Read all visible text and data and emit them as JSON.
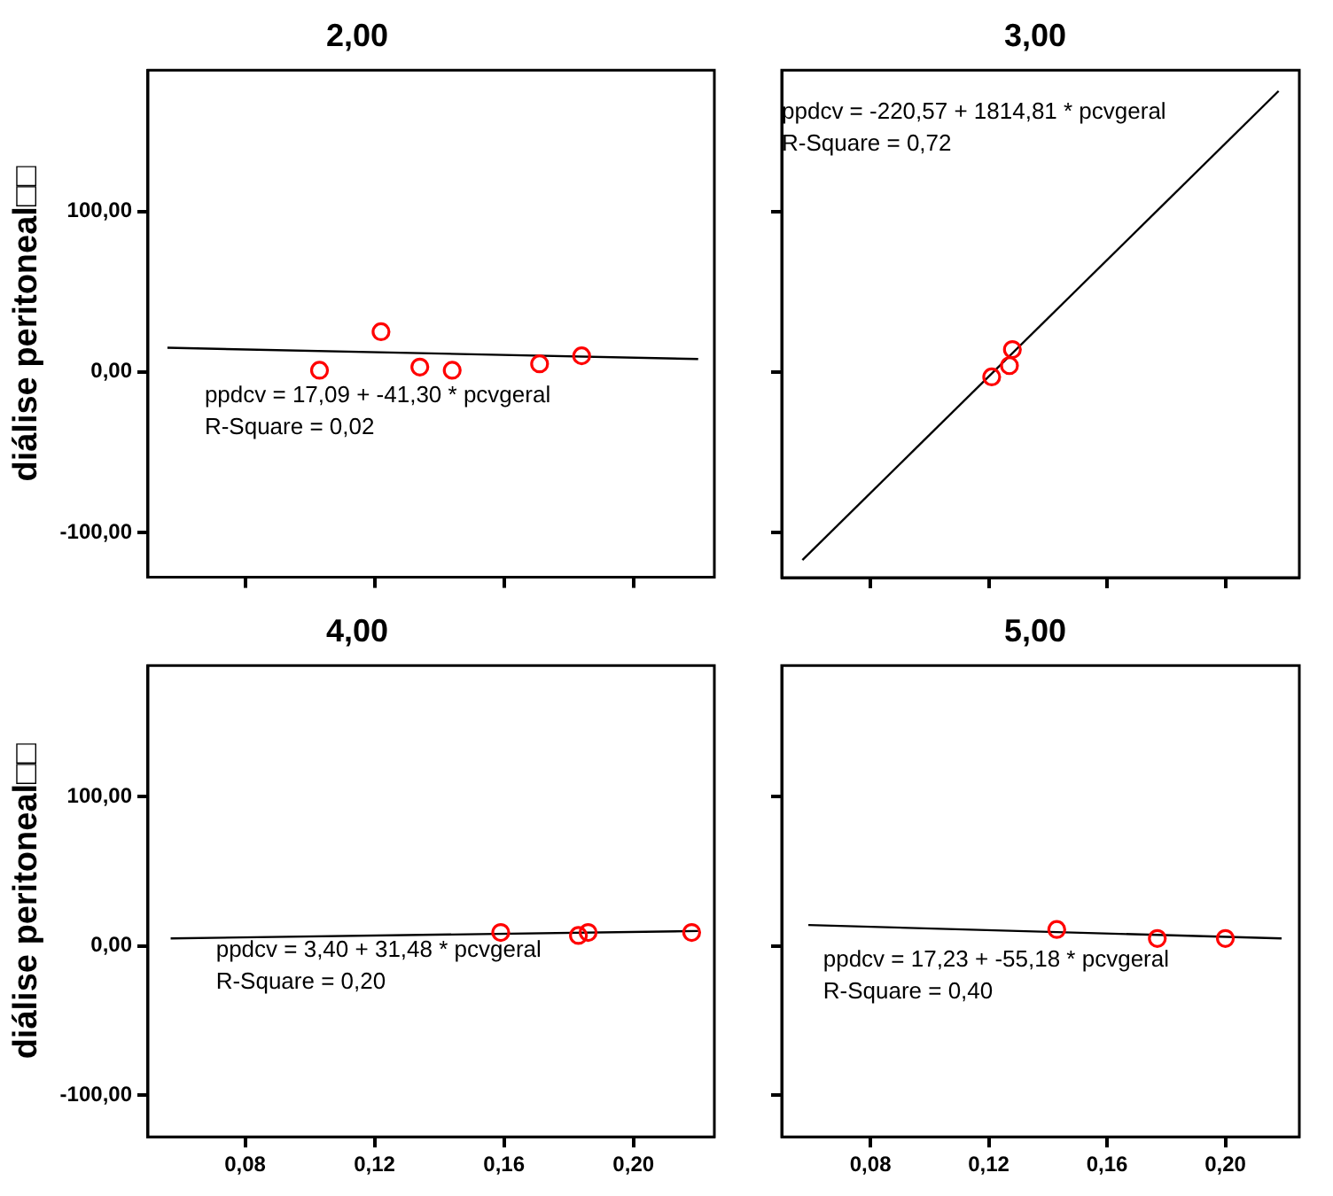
{
  "chart_data": [
    {
      "type": "scatter",
      "title": "2,00",
      "ylabel": "diálise peritoneal□□",
      "marker": "circle",
      "tick_labels": "y",
      "xlim": [
        0.05,
        0.225
      ],
      "ylim": [
        -128,
        188
      ],
      "xticks": [
        {
          "value": 0.08,
          "label": null
        },
        {
          "value": 0.12,
          "label": null
        },
        {
          "value": 0.16,
          "label": null
        },
        {
          "value": 0.2,
          "label": null
        }
      ],
      "yticks": [
        {
          "value": -100,
          "label": "-100,00"
        },
        {
          "value": 0,
          "label": "0,00"
        },
        {
          "value": 100,
          "label": "100,00"
        }
      ],
      "annotations": [
        "ppdcv = 17,09 + -41,30 * pcvgeral",
        "R-Square = 0,02"
      ],
      "series": [
        {
          "type": "scatter",
          "color": "#ff0000",
          "x": [
            0.103,
            0.122,
            0.134,
            0.144,
            0.171,
            0.184
          ],
          "values": [
            1,
            25,
            3,
            1,
            5,
            10
          ]
        },
        {
          "type": "line",
          "color": "#000000",
          "marker": "none",
          "x": [
            0.056,
            0.22
          ],
          "values": [
            15,
            8
          ]
        }
      ]
    },
    {
      "type": "scatter",
      "title": "3,00",
      "marker": "circle",
      "tick_labels": false,
      "xlim": [
        0.05,
        0.225
      ],
      "ylim": [
        -128,
        188
      ],
      "xticks": [
        {
          "value": 0.08,
          "label": null
        },
        {
          "value": 0.12,
          "label": null
        },
        {
          "value": 0.16,
          "label": null
        },
        {
          "value": 0.2,
          "label": null
        }
      ],
      "yticks": [
        {
          "value": -100,
          "label": null
        },
        {
          "value": 0,
          "label": null
        },
        {
          "value": 100,
          "label": null
        }
      ],
      "annotations": [
        "ppdcv = -220,57 + 1814,81 * pcvgeral",
        "R-Square = 0,72"
      ],
      "series": [
        {
          "type": "scatter",
          "color": "#ff0000",
          "x": [
            0.121,
            0.127,
            0.128
          ],
          "values": [
            -3,
            4,
            14
          ]
        },
        {
          "type": "line",
          "color": "#000000",
          "marker": "none",
          "x": [
            0.057,
            0.218
          ],
          "values": [
            -117,
            175
          ]
        }
      ]
    },
    {
      "type": "scatter",
      "title": "4,00",
      "ylabel": "diálise peritoneal□□",
      "marker": "circle",
      "xlim": [
        0.05,
        0.225
      ],
      "ylim": [
        -128,
        188
      ],
      "xticks": [
        {
          "value": 0.08,
          "label": "0,08"
        },
        {
          "value": 0.12,
          "label": "0,12"
        },
        {
          "value": 0.16,
          "label": "0,16"
        },
        {
          "value": 0.2,
          "label": "0,20"
        }
      ],
      "yticks": [
        {
          "value": -100,
          "label": "-100,00"
        },
        {
          "value": 0,
          "label": "0,00"
        },
        {
          "value": 100,
          "label": "100,00"
        }
      ],
      "annotations": [
        "ppdcv = 3,40 + 31,48 * pcvgeral",
        "R-Square = 0,20"
      ],
      "series": [
        {
          "type": "scatter",
          "color": "#ff0000",
          "x": [
            0.159,
            0.183,
            0.186,
            0.218
          ],
          "values": [
            9,
            7,
            9,
            9
          ]
        },
        {
          "type": "line",
          "color": "#000000",
          "marker": "none",
          "x": [
            0.057,
            0.22
          ],
          "values": [
            5,
            10
          ]
        }
      ]
    },
    {
      "type": "scatter",
      "title": "5,00",
      "marker": "circle",
      "tick_labels": "x",
      "xlim": [
        0.05,
        0.225
      ],
      "ylim": [
        -128,
        188
      ],
      "xticks": [
        {
          "value": 0.08,
          "label": "0,08"
        },
        {
          "value": 0.12,
          "label": "0,12"
        },
        {
          "value": 0.16,
          "label": "0,16"
        },
        {
          "value": 0.2,
          "label": "0,20"
        }
      ],
      "yticks": [
        {
          "value": -100,
          "label": null
        },
        {
          "value": 0,
          "label": null
        },
        {
          "value": 100,
          "label": null
        }
      ],
      "annotations": [
        "ppdcv = 17,23 + -55,18 * pcvgeral",
        "R-Square = 0,40"
      ],
      "series": [
        {
          "type": "scatter",
          "color": "#ff0000",
          "x": [
            0.143,
            0.177,
            0.2
          ],
          "values": [
            11,
            5,
            5
          ]
        },
        {
          "type": "line",
          "color": "#000000",
          "marker": "none",
          "x": [
            0.059,
            0.219
          ],
          "values": [
            14,
            5
          ]
        }
      ]
    }
  ]
}
